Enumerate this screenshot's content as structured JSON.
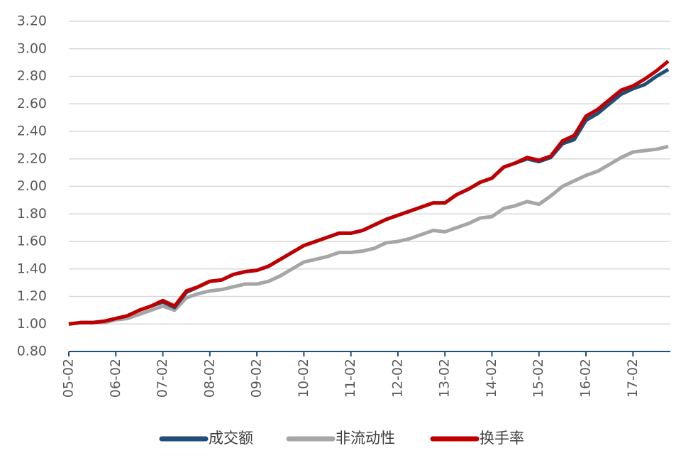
{
  "chart_data": {
    "type": "line",
    "categories": [
      "05-02",
      null,
      null,
      null,
      "06-02",
      null,
      null,
      null,
      "07-02",
      null,
      null,
      null,
      "08-02",
      null,
      null,
      null,
      "09-02",
      null,
      null,
      null,
      "10-02",
      null,
      null,
      null,
      "11-02",
      null,
      null,
      null,
      "12-02",
      null,
      null,
      null,
      "13-02",
      null,
      null,
      null,
      "14-02",
      null,
      null,
      null,
      "15-02",
      null,
      null,
      null,
      "16-02",
      null,
      null,
      null,
      "17-02",
      null,
      null,
      null
    ],
    "series": [
      {
        "name": "非流动性",
        "color": "#a6a6a6",
        "values": [
          1.0,
          1.01,
          1.01,
          1.01,
          1.03,
          1.04,
          1.07,
          1.1,
          1.13,
          1.1,
          1.19,
          1.22,
          1.24,
          1.25,
          1.27,
          1.29,
          1.29,
          1.31,
          1.35,
          1.4,
          1.45,
          1.47,
          1.49,
          1.52,
          1.52,
          1.53,
          1.55,
          1.59,
          1.6,
          1.62,
          1.65,
          1.68,
          1.67,
          1.7,
          1.73,
          1.77,
          1.78,
          1.84,
          1.86,
          1.89,
          1.87,
          1.93,
          2.0,
          2.04,
          2.08,
          2.11,
          2.16,
          2.21,
          2.25,
          2.26,
          2.27,
          2.29
        ]
      },
      {
        "name": "成交额",
        "color": "#1f4e79",
        "values": [
          1.0,
          1.01,
          1.01,
          1.02,
          1.04,
          1.06,
          1.1,
          1.13,
          1.16,
          1.12,
          1.23,
          1.27,
          1.31,
          1.32,
          1.36,
          1.38,
          1.39,
          1.42,
          1.47,
          1.52,
          1.57,
          1.6,
          1.63,
          1.66,
          1.66,
          1.68,
          1.72,
          1.76,
          1.79,
          1.82,
          1.85,
          1.88,
          1.88,
          1.94,
          1.98,
          2.03,
          2.06,
          2.14,
          2.17,
          2.2,
          2.18,
          2.21,
          2.31,
          2.34,
          2.48,
          2.53,
          2.6,
          2.67,
          2.71,
          2.74,
          2.8,
          2.85
        ]
      },
      {
        "name": "换手率",
        "color": "#c00000",
        "values": [
          1.0,
          1.01,
          1.01,
          1.02,
          1.04,
          1.06,
          1.1,
          1.13,
          1.17,
          1.13,
          1.24,
          1.27,
          1.31,
          1.32,
          1.36,
          1.38,
          1.39,
          1.42,
          1.47,
          1.52,
          1.57,
          1.6,
          1.63,
          1.66,
          1.66,
          1.68,
          1.72,
          1.76,
          1.79,
          1.82,
          1.85,
          1.88,
          1.88,
          1.94,
          1.98,
          2.03,
          2.06,
          2.14,
          2.17,
          2.21,
          2.19,
          2.22,
          2.33,
          2.37,
          2.51,
          2.56,
          2.63,
          2.7,
          2.73,
          2.78,
          2.84,
          2.91
        ]
      }
    ],
    "ylim": [
      0.8,
      3.2
    ],
    "yticks": [
      {
        "value": 0.8,
        "label": "0.80"
      },
      {
        "value": 1.0,
        "label": "1.00"
      },
      {
        "value": 1.2,
        "label": "1.20"
      },
      {
        "value": 1.4,
        "label": "1.40"
      },
      {
        "value": 1.6,
        "label": "1.60"
      },
      {
        "value": 1.8,
        "label": "1.80"
      },
      {
        "value": 2.0,
        "label": "2.00"
      },
      {
        "value": 2.2,
        "label": "2.20"
      },
      {
        "value": 2.4,
        "label": "2.40"
      },
      {
        "value": 2.6,
        "label": "2.60"
      },
      {
        "value": 2.8,
        "label": "2.80"
      },
      {
        "value": 3.0,
        "label": "3.00"
      },
      {
        "value": 3.2,
        "label": "3.20"
      }
    ],
    "grid": true
  }
}
